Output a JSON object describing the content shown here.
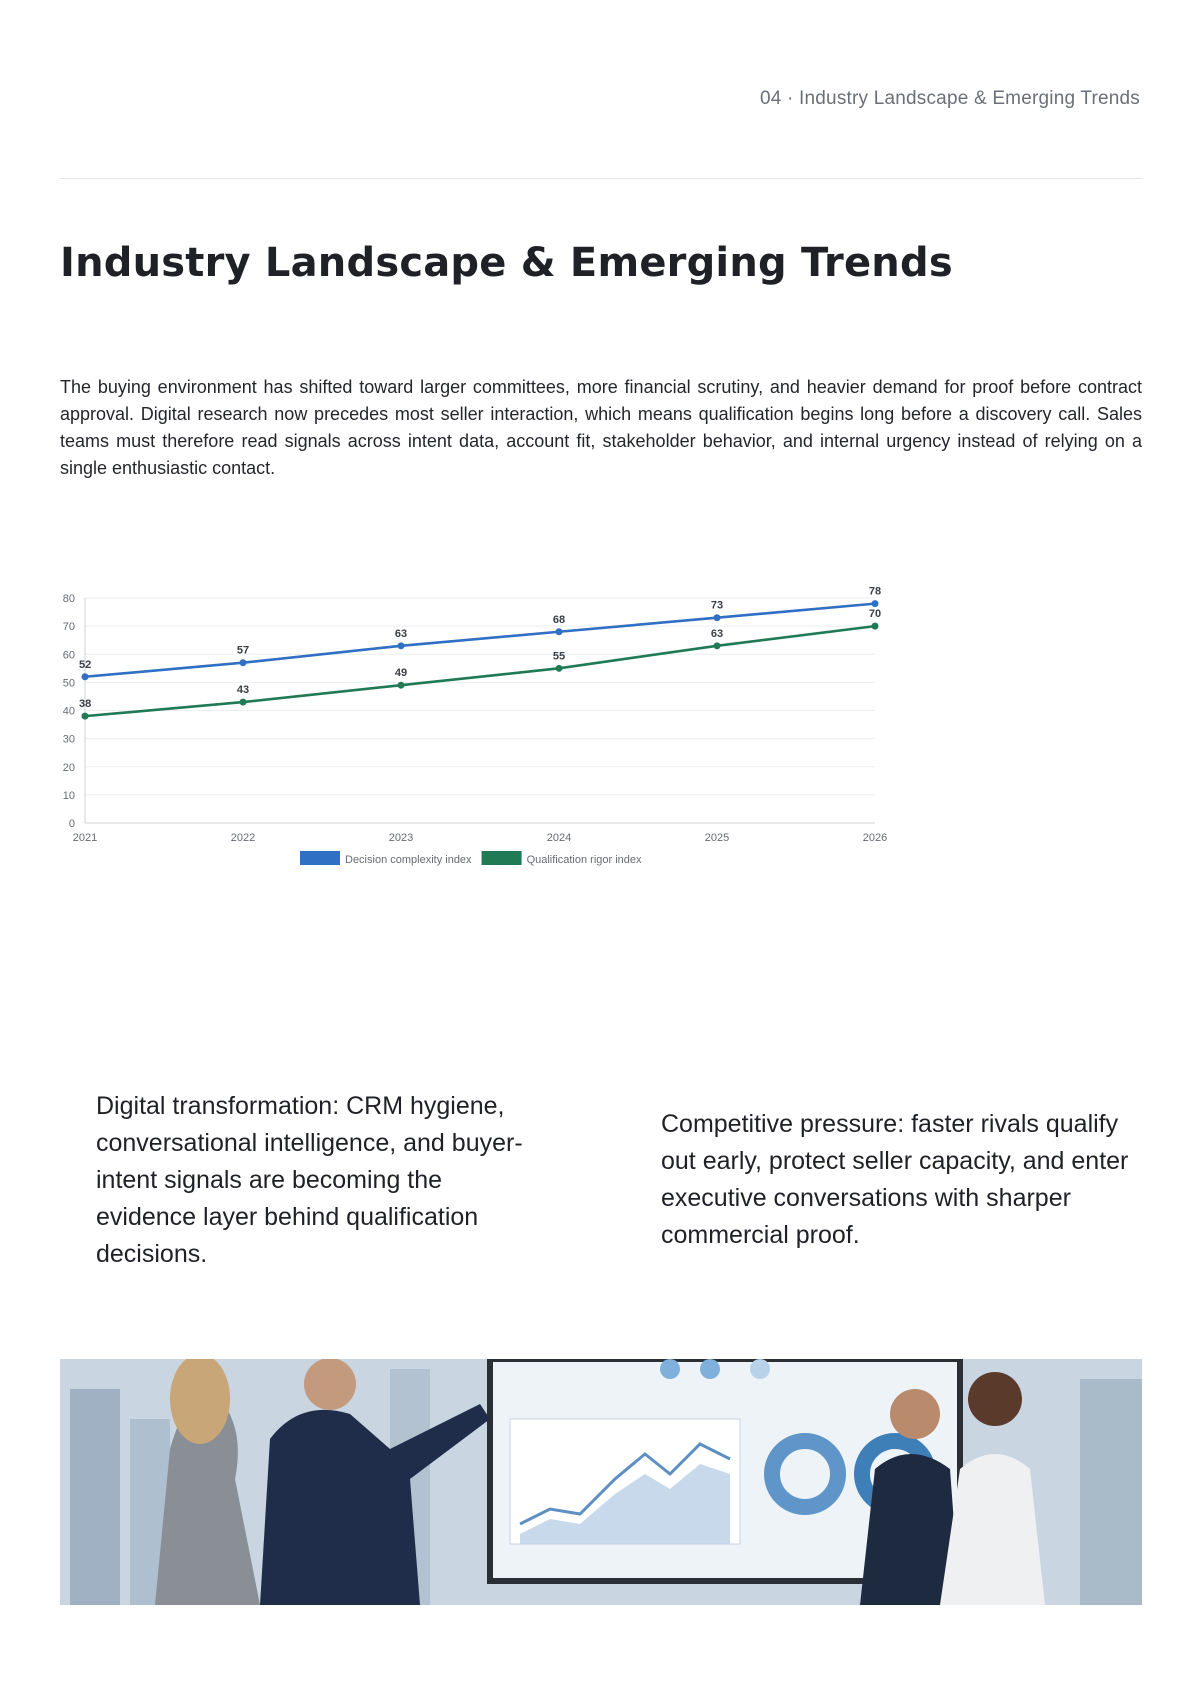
{
  "header": {
    "section_label": "04 · Industry Landscape & Emerging Trends"
  },
  "page": {
    "title": "Industry Landscape & Emerging Trends",
    "intro": "The buying environment has shifted toward larger committees, more financial scrutiny, and heavier demand for proof before contract approval. Digital research now precedes most seller interaction, which means qualification begins long before a discovery call. Sales teams must therefore read signals across intent data, account fit, stakeholder behavior, and internal urgency instead of relying on a single enthusiastic contact."
  },
  "chart_data": {
    "type": "line",
    "x": [
      "2021",
      "2022",
      "2023",
      "2024",
      "2025",
      "2026"
    ],
    "ylim": [
      0,
      80
    ],
    "yticks": [
      0,
      10,
      20,
      30,
      40,
      50,
      60,
      70,
      80
    ],
    "grid": true,
    "legend": "bottom",
    "series": [
      {
        "name": "Decision complexity index",
        "values": [
          52,
          57,
          63,
          68,
          73,
          78
        ],
        "color": "#2f6fc4"
      },
      {
        "name": "Qualification rigor index",
        "values": [
          38,
          43,
          49,
          55,
          63,
          70
        ],
        "color": "#1f7a55"
      }
    ]
  },
  "callouts": {
    "left": "Digital transformation: CRM hygiene, conversational intelligence, and buyer-intent signals are becoming the evidence layer behind qualification decisions.",
    "right": "Competitive pressure: faster rivals qualify out early, protect seller capacity, and enter executive conversations with sharper commercial proof."
  }
}
